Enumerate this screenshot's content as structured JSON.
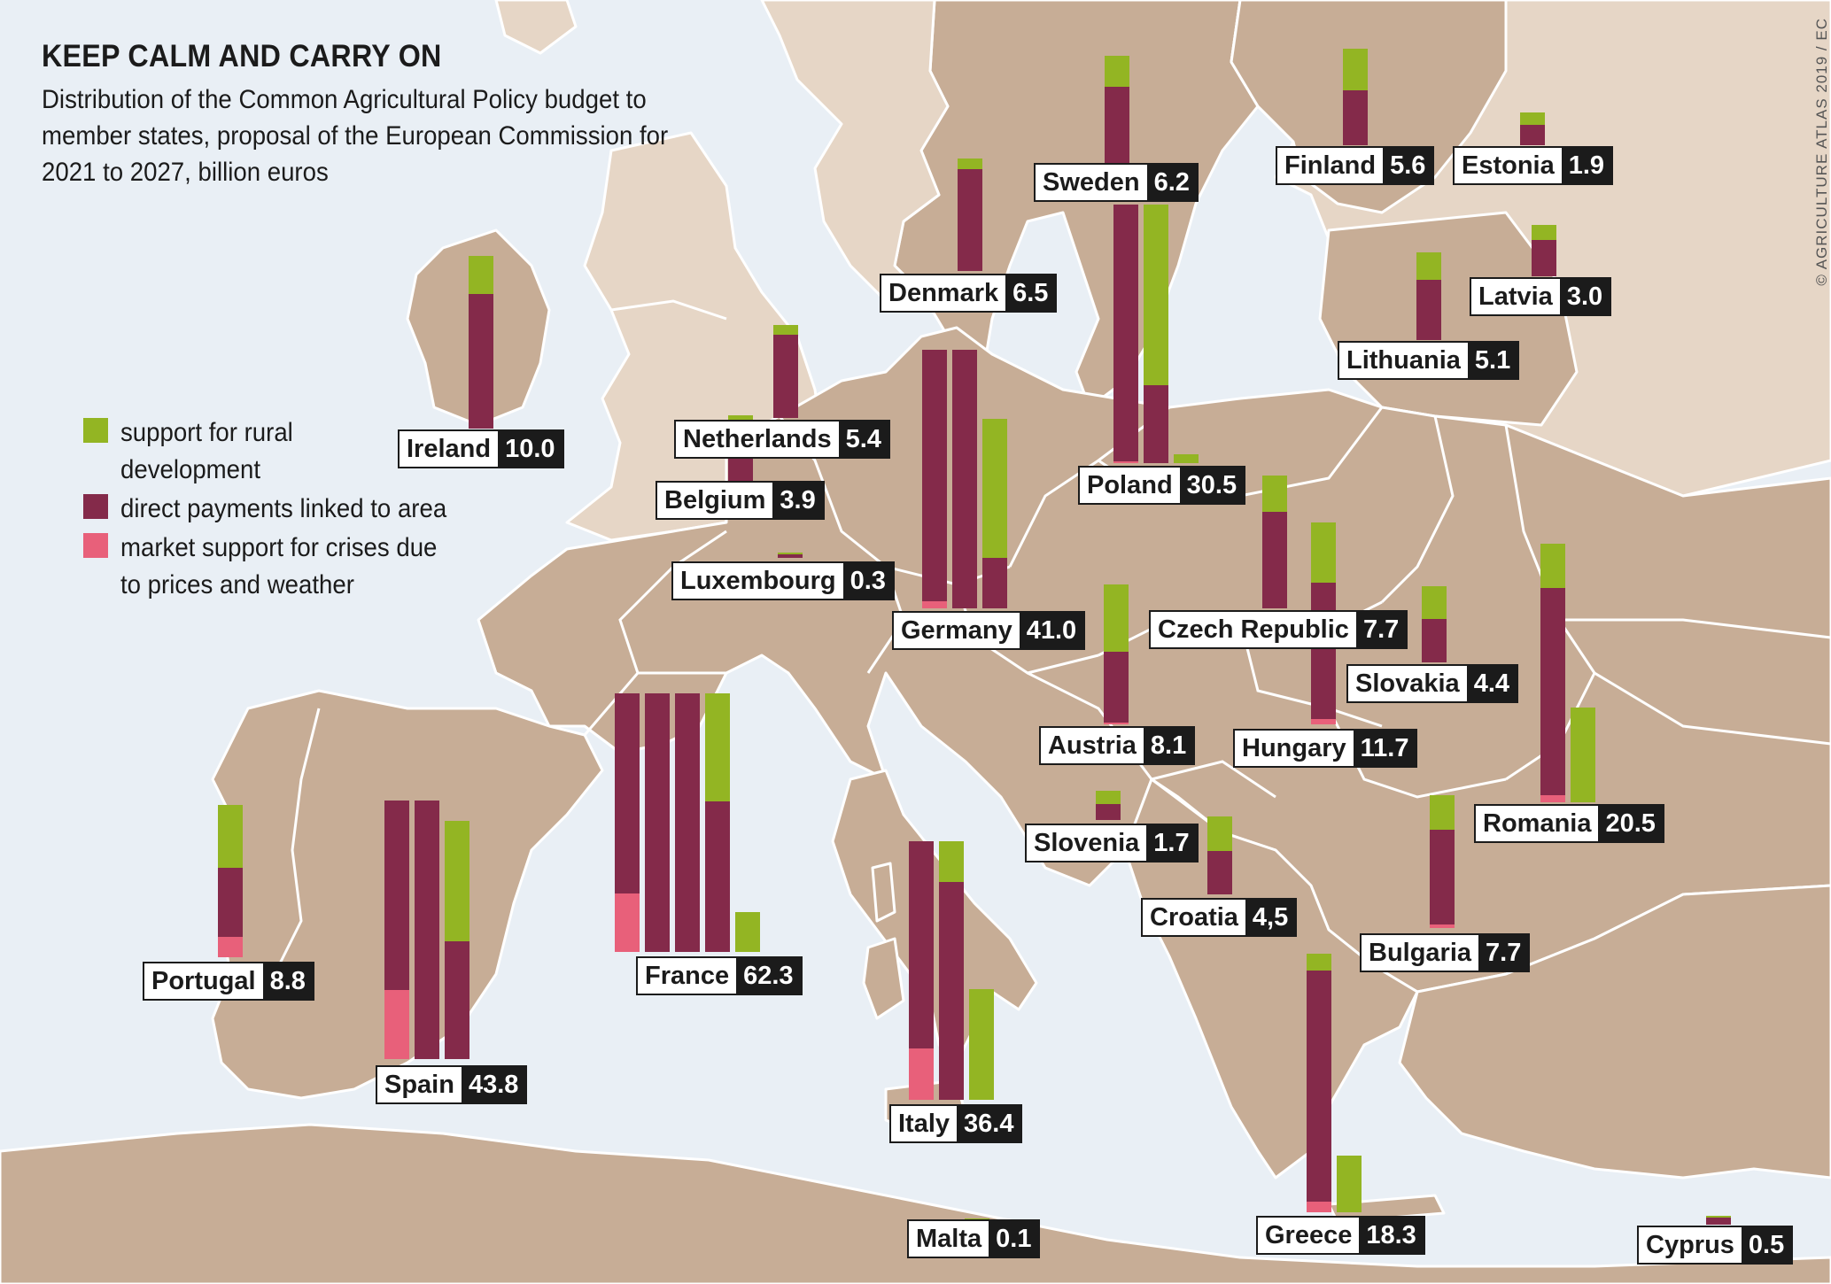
{
  "header": {
    "title": "KEEP CALM AND CARRY ON",
    "subtitle": "Distribution of the Common Agricultural Policy budget to member states, proposal of the European Commission for 2021 to 2027, billion euros"
  },
  "credit": "© AGRICULTURE ATLAS 2019 / EC",
  "legend": {
    "items": [
      {
        "label": "support for rural\ndevelopment",
        "color": "#93b523"
      },
      {
        "label": "direct payments linked to area",
        "color": "#842a4a"
      },
      {
        "label": "market support for crises due\nto prices and weather",
        "color": "#e8607a"
      }
    ]
  },
  "colors": {
    "rural": "#93b523",
    "direct": "#842a4a",
    "market": "#e8607a",
    "sea": "#e9eff5",
    "land": "#c7ad96"
  },
  "chart_data": {
    "type": "bar",
    "title": "KEEP CALM AND CARRY ON",
    "unit": "billion euros",
    "stack_order": [
      "market",
      "direct",
      "rural"
    ],
    "units_per_column": 15.0,
    "series": [
      {
        "name": "support for rural development",
        "key": "rural"
      },
      {
        "name": "direct payments linked to area",
        "key": "direct"
      },
      {
        "name": "market support for crises due to prices and weather",
        "key": "market"
      }
    ],
    "countries": [
      {
        "name": "Ireland",
        "total": "10.0",
        "rural": 2.2,
        "direct": 7.8,
        "market": 0.0
      },
      {
        "name": "Netherlands",
        "total": "5.4",
        "rural": 0.6,
        "direct": 4.8,
        "market": 0.0
      },
      {
        "name": "Belgium",
        "total": "3.9",
        "rural": 0.6,
        "direct": 3.3,
        "market": 0.0
      },
      {
        "name": "Luxembourg",
        "total": "0.3",
        "rural": 0.1,
        "direct": 0.2,
        "market": 0.0
      },
      {
        "name": "Denmark",
        "total": "6.5",
        "rural": 0.6,
        "direct": 5.9,
        "market": 0.0
      },
      {
        "name": "Sweden",
        "total": "6.2",
        "rural": 1.8,
        "direct": 4.4,
        "market": 0.0
      },
      {
        "name": "Finland",
        "total": "5.6",
        "rural": 2.4,
        "direct": 3.2,
        "market": 0.0
      },
      {
        "name": "Estonia",
        "total": "1.9",
        "rural": 0.7,
        "direct": 1.2,
        "market": 0.0
      },
      {
        "name": "Latvia",
        "total": "3.0",
        "rural": 0.9,
        "direct": 2.1,
        "market": 0.0
      },
      {
        "name": "Lithuania",
        "total": "5.1",
        "rural": 1.6,
        "direct": 3.5,
        "market": 0.0
      },
      {
        "name": "Germany",
        "total": "41.0",
        "rural": 8.1,
        "direct": 32.5,
        "market": 0.4
      },
      {
        "name": "Poland",
        "total": "30.5",
        "rural": 11.0,
        "direct": 19.4,
        "market": 0.1
      },
      {
        "name": "Czech Republic",
        "total": "7.7",
        "rural": 2.1,
        "direct": 5.6,
        "market": 0.0
      },
      {
        "name": "Slovakia",
        "total": "4.4",
        "rural": 1.9,
        "direct": 2.5,
        "market": 0.0
      },
      {
        "name": "Austria",
        "total": "8.1",
        "rural": 3.9,
        "direct": 4.1,
        "market": 0.1
      },
      {
        "name": "Hungary",
        "total": "11.7",
        "rural": 3.5,
        "direct": 7.9,
        "market": 0.3
      },
      {
        "name": "Romania",
        "total": "20.5",
        "rural": 8.1,
        "direct": 12.0,
        "market": 0.4
      },
      {
        "name": "Slovenia",
        "total": "1.7",
        "rural": 0.8,
        "direct": 0.9,
        "market": 0.0
      },
      {
        "name": "Croatia",
        "total": "4,5",
        "rural": 2.0,
        "direct": 2.5,
        "market": 0.0
      },
      {
        "name": "Bulgaria",
        "total": "7.7",
        "rural": 2.0,
        "direct": 5.5,
        "market": 0.2
      },
      {
        "name": "France",
        "total": "62.3",
        "rural": 8.6,
        "direct": 50.3,
        "market": 3.4
      },
      {
        "name": "Spain",
        "total": "43.8",
        "rural": 7.0,
        "direct": 32.8,
        "market": 4.0
      },
      {
        "name": "Portugal",
        "total": "8.8",
        "rural": 3.6,
        "direct": 4.0,
        "market": 1.2
      },
      {
        "name": "Italy",
        "total": "36.4",
        "rural": 8.8,
        "direct": 24.6,
        "market": 3.0
      },
      {
        "name": "Malta",
        "total": "0.1",
        "rural": 0.1,
        "direct": 0.0,
        "market": 0.0
      },
      {
        "name": "Greece",
        "total": "18.3",
        "rural": 4.3,
        "direct": 13.4,
        "market": 0.6
      },
      {
        "name": "Cyprus",
        "total": "0.5",
        "rural": 0.1,
        "direct": 0.4,
        "market": 0.0
      }
    ]
  }
}
